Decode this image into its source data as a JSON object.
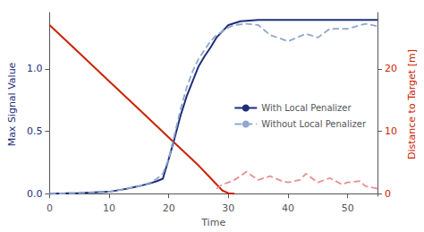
{
  "chart_data": {
    "type": "line",
    "xlabel": "Time",
    "ylabel": "Max Signal Value",
    "y2label": "Distance to Target [m]",
    "xlim": [
      0,
      55
    ],
    "xticks": [
      0,
      10,
      20,
      30,
      40,
      50
    ],
    "ylim": [
      -0.02,
      1.45
    ],
    "yticks": [
      {
        "value": 0.0,
        "label": "0.0"
      },
      0.5,
      {
        "value": 1.0,
        "label": "1.0"
      }
    ],
    "y2lim": [
      -0.4,
      29
    ],
    "y2ticks": [
      0,
      10,
      20
    ],
    "grid": false,
    "legend": "right",
    "series": [
      {
        "name": "With Local Penalizer",
        "color": "#1f2e7a",
        "line_style": "solid",
        "x": [
          0,
          5,
          10,
          13,
          15,
          17,
          18,
          19,
          20,
          21,
          22,
          23,
          24,
          25,
          26,
          27,
          28,
          29,
          30,
          32,
          35,
          40,
          45,
          50,
          55
        ],
        "values": [
          0.0,
          0.005,
          0.015,
          0.04,
          0.06,
          0.085,
          0.1,
          0.12,
          0.28,
          0.45,
          0.63,
          0.78,
          0.9,
          1.02,
          1.1,
          1.17,
          1.25,
          1.3,
          1.35,
          1.38,
          1.39,
          1.39,
          1.39,
          1.39,
          1.39
        ]
      },
      {
        "name": "Without Local Penalizer",
        "color": "#8fa8cc",
        "line_style": "dashed",
        "x": [
          0,
          5,
          10,
          13,
          15,
          17,
          18,
          19,
          20,
          21,
          22,
          23,
          24,
          25,
          26,
          27,
          28,
          29,
          30,
          31,
          33,
          35,
          37,
          40,
          43,
          45,
          47,
          50,
          53,
          55
        ],
        "values": [
          0.0,
          0.005,
          0.015,
          0.04,
          0.06,
          0.09,
          0.12,
          0.16,
          0.28,
          0.48,
          0.68,
          0.85,
          0.98,
          1.08,
          1.15,
          1.22,
          1.27,
          1.3,
          1.33,
          1.35,
          1.36,
          1.35,
          1.27,
          1.22,
          1.28,
          1.25,
          1.32,
          1.32,
          1.36,
          1.34
        ]
      },
      {
        "axis": "y2",
        "color": "#cc2200",
        "line_style": "solid",
        "x": [
          0,
          5,
          10,
          15,
          20,
          25,
          27,
          28,
          29,
          30,
          31
        ],
        "values": [
          27.0,
          22.5,
          18.0,
          13.5,
          9.0,
          4.5,
          2.5,
          1.5,
          0.5,
          0.08,
          0.0
        ]
      },
      {
        "axis": "y2",
        "color": "#e89090",
        "line_style": "dashed",
        "x": [
          28,
          29,
          30,
          31,
          32,
          33,
          35,
          37,
          39,
          40,
          42,
          43,
          45,
          47,
          49,
          50,
          52,
          53,
          55
        ],
        "values": [
          0.8,
          1.5,
          1.8,
          2.2,
          2.8,
          3.5,
          2.2,
          2.8,
          2.0,
          1.8,
          2.2,
          3.2,
          1.8,
          2.5,
          1.5,
          1.8,
          2.0,
          1.2,
          0.8
        ]
      }
    ]
  }
}
